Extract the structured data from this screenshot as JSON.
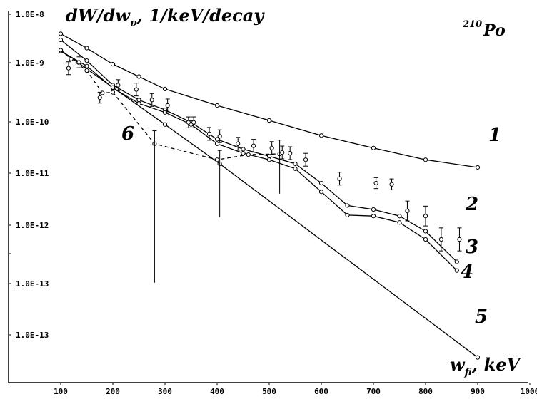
{
  "chart_data": {
    "type": "line",
    "ylabel": "dW/dw",
    "ylabel_sub": "ν",
    "ylabel_units": ", 1/keV/decay",
    "xlabel": "w",
    "xlabel_sub": "fi",
    "xlabel_units": ", keV",
    "isotope_mass": "210",
    "isotope_symbol": "Po",
    "x_ticks": [
      100,
      200,
      300,
      400,
      500,
      600,
      700,
      800,
      900,
      1000
    ],
    "y_ticks": [
      "1.0E-8",
      "1.0E-9",
      "1.0E-10",
      "1.0E-11",
      "1.0E-12",
      "1.0E-13",
      "1.0E-13"
    ],
    "y_scale": "log",
    "series": [
      {
        "name": "1",
        "dashed": false,
        "x": [
          100,
          150,
          200,
          250,
          300,
          400,
          500,
          600,
          700,
          800,
          900
        ],
        "y": [
          4.5e-09,
          2.5e-09,
          1.3e-09,
          7.8e-10,
          4.7e-10,
          2.4e-10,
          1.3e-10,
          7e-11,
          4.2e-11,
          2.6e-11,
          1.9e-11
        ]
      },
      {
        "name": "2",
        "dashed": false,
        "x": [
          100,
          150,
          200,
          250,
          300,
          350,
          400,
          450,
          500,
          550,
          600,
          650,
          700,
          750,
          800,
          860
        ],
        "y": [
          3.5e-09,
          1.5e-09,
          5.5e-10,
          3e-10,
          2e-10,
          1.2e-10,
          6e-11,
          4e-11,
          3e-11,
          2.2e-11,
          1e-11,
          4e-12,
          3.4e-12,
          2.6e-12,
          1.4e-12,
          4e-13
        ]
      },
      {
        "name": "3",
        "dashed": false,
        "x": [
          100,
          150,
          200,
          250,
          300,
          350,
          400,
          450,
          500,
          550,
          600,
          650,
          700,
          750,
          800,
          860
        ],
        "y": [
          2.2e-09,
          1.2e-09,
          4.9e-10,
          2.6e-10,
          1.8e-10,
          1.1e-10,
          5e-11,
          3.4e-11,
          2.6e-11,
          1.8e-11,
          7e-12,
          2.7e-12,
          2.6e-12,
          2e-12,
          1e-12,
          2.8e-13
        ]
      },
      {
        "name": "4",
        "dashed": false,
        "x": [
          100,
          200,
          300,
          405,
          900
        ],
        "y": [
          2.3e-09,
          5e-10,
          1.1e-10,
          2.2e-11,
          8e-15
        ]
      },
      {
        "name": "5",
        "dashed": true,
        "x": [
          100,
          120,
          150,
          180,
          200,
          280,
          400,
          460,
          520
        ],
        "y": [
          2.3e-09,
          1.6e-09,
          1e-09,
          4e-10,
          4.1e-10,
          5e-11,
          2.6e-11,
          3.2e-11,
          3.3e-11
        ]
      }
    ],
    "experimental_points": {
      "x": [
        115,
        135,
        175,
        210,
        245,
        275,
        305,
        345,
        355,
        385,
        405,
        440,
        470,
        505,
        525,
        540,
        570,
        635,
        705,
        735,
        765,
        800,
        830,
        865
      ],
      "y": [
        1.1e-09,
        1.4e-09,
        3.3e-10,
        5.5e-10,
        4.6e-10,
        3e-10,
        2.4e-10,
        1.2e-10,
        1.2e-10,
        7.5e-11,
        6.8e-11,
        5e-11,
        4.6e-11,
        4.2e-11,
        3.5e-11,
        3.4e-11,
        2.6e-11,
        1.2e-11,
        1e-11,
        9.5e-12,
        3.2e-12,
        2.6e-12,
        1e-12,
        1e-12
      ],
      "err_factor": [
        1.3,
        1.25,
        1.25,
        1.25,
        1.3,
        1.3,
        1.3,
        1.25,
        1.25,
        1.3,
        1.3,
        1.3,
        1.3,
        1.3,
        1.3,
        1.3,
        1.3,
        1.3,
        1.25,
        1.25,
        1.5,
        1.5,
        1.6,
        1.6
      ]
    },
    "wide_error_bars": [
      {
        "x": 280,
        "y": 5e-11,
        "low": 1.7e-13,
        "high": 8.5e-11
      },
      {
        "x": 405,
        "y": 2.6e-11,
        "low": 2.5e-12,
        "high": 3.8e-11
      },
      {
        "x": 520,
        "y": 3.3e-11,
        "low": 6.5e-12,
        "high": 5.8e-11
      }
    ],
    "curve_labels": [
      "1",
      "2",
      "3",
      "4",
      "5",
      "6"
    ]
  }
}
